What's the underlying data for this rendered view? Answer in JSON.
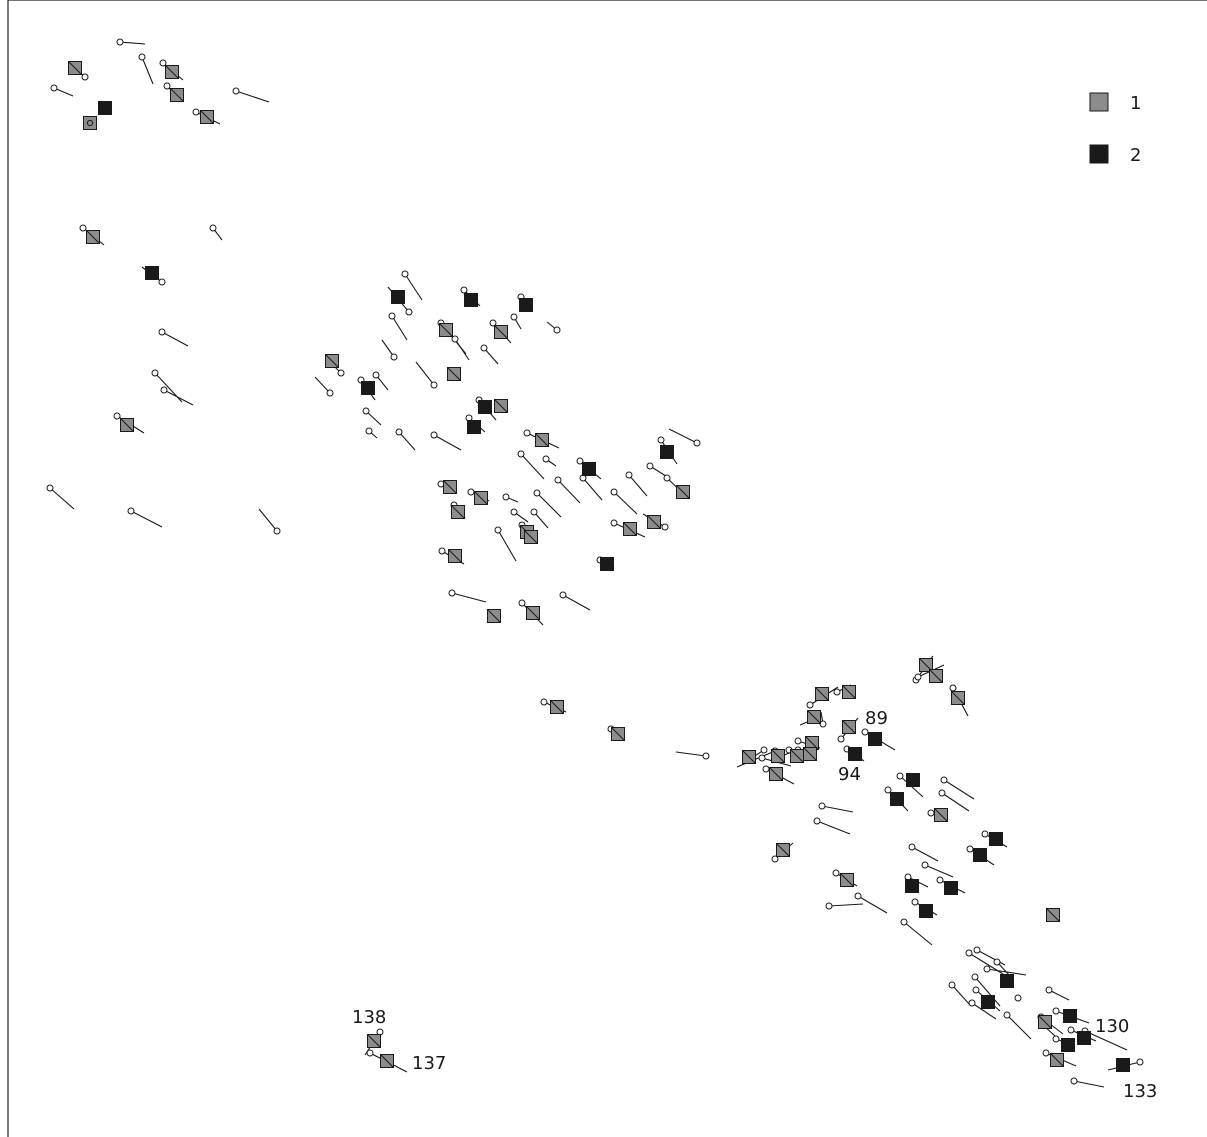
{
  "legend": {
    "entries": [
      {
        "key": "1",
        "label": "1",
        "color": "#8c8c8c"
      },
      {
        "key": "2",
        "label": "2",
        "color": "#1a1a1a"
      }
    ]
  },
  "labels": {
    "l89": "89",
    "l94": "94",
    "l130": "130",
    "l133": "133",
    "l137": "137",
    "l138": "138"
  }
}
